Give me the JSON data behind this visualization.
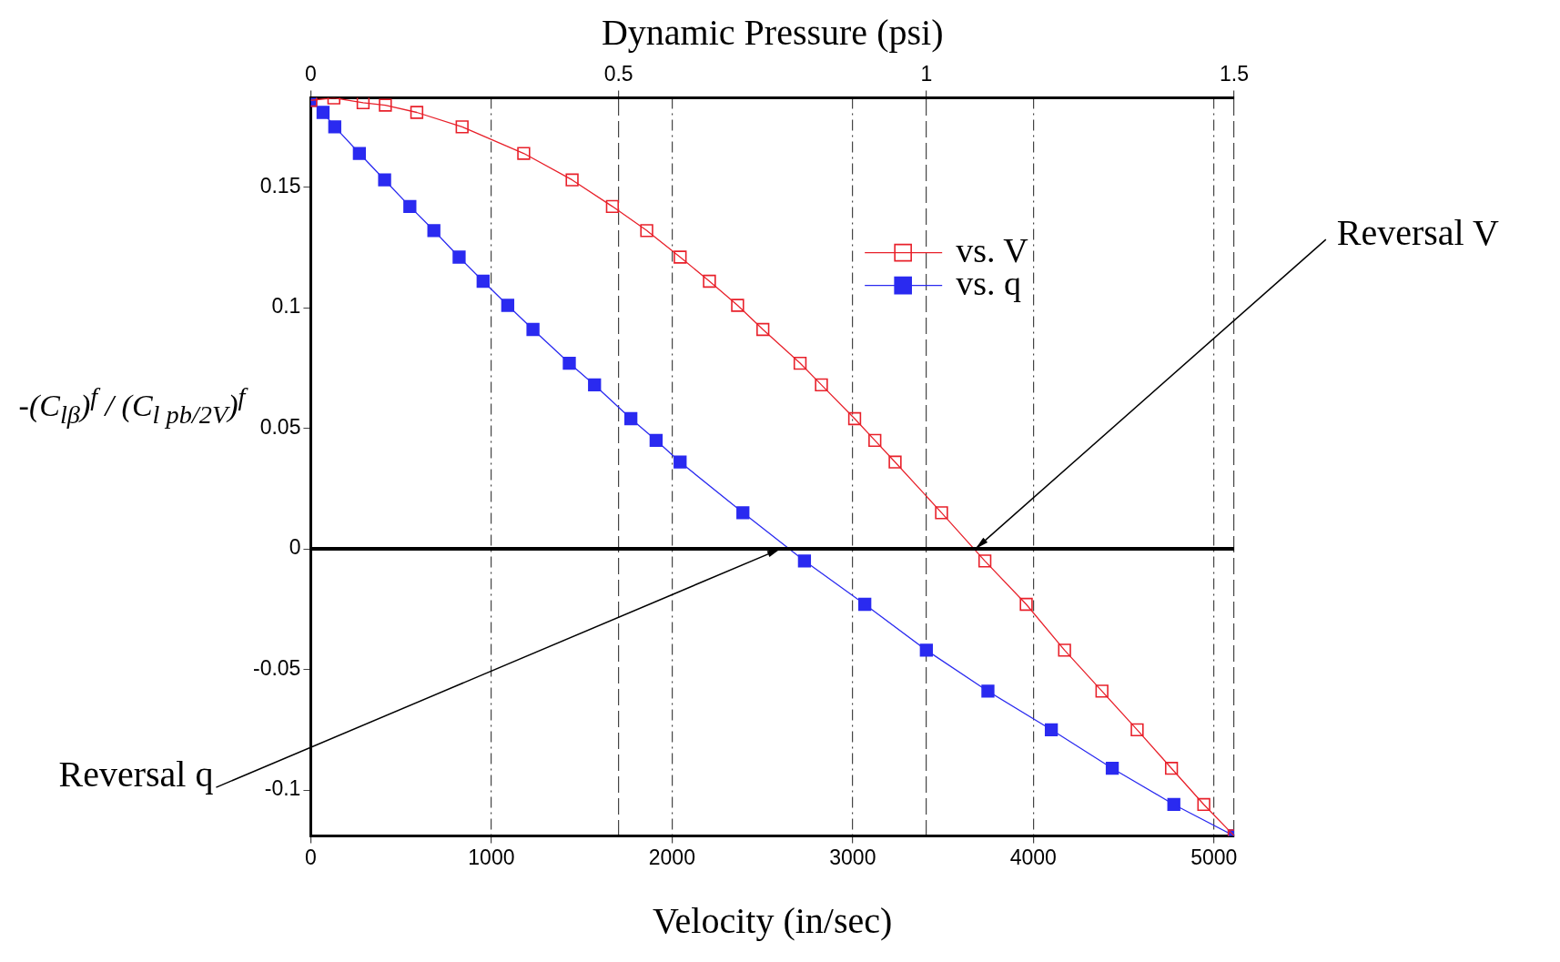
{
  "chart_data": {
    "type": "line",
    "xlabel": "Velocity (in/sec)",
    "x2label": "Dynamic Pressure (psi)",
    "ylabel": "-(C$_{lβ}$)$^{f}$ / (C$_{l pb/2V}$)$^{f}$",
    "xlim": [
      0,
      5112
    ],
    "xticks": [
      0,
      1000,
      2000,
      3000,
      4000,
      5000
    ],
    "x2lim": [
      0,
      1.5
    ],
    "x2ticks": [
      0,
      0.5,
      1,
      1.5
    ],
    "ylim": [
      -0.119,
      0.187
    ],
    "yticks": [
      -0.1,
      -0.05,
      0,
      0.05,
      0.1,
      0.15
    ],
    "grid": "x",
    "legend": "top right",
    "marker": "square",
    "line_style": "solid",
    "series": [
      {
        "name": "vs. V",
        "color": "#e8202a",
        "x": [
          0,
          128,
          290,
          413,
          587,
          838,
          1179,
          1447,
          1670,
          1860,
          2045,
          2207,
          2363,
          2503,
          2709,
          2827,
          3011,
          3123,
          3235,
          3492,
          3732,
          3961,
          4173,
          4380,
          4575,
          4765,
          4944,
          5112
        ],
        "values": [
          0.186,
          0.187,
          0.185,
          0.184,
          0.181,
          0.175,
          0.164,
          0.153,
          0.142,
          0.132,
          0.121,
          0.111,
          0.101,
          0.091,
          0.077,
          0.068,
          0.054,
          0.045,
          0.036,
          0.015,
          -0.005,
          -0.023,
          -0.042,
          -0.059,
          -0.075,
          -0.091,
          -0.106,
          -0.119
        ]
      },
      {
        "name": "vs. q",
        "color": "#2a2af0",
        "axis": "x2",
        "x": [
          0,
          0.02,
          0.039,
          0.079,
          0.12,
          0.161,
          0.2,
          0.241,
          0.28,
          0.32,
          0.361,
          0.42,
          0.461,
          0.52,
          0.561,
          0.6,
          0.702,
          0.802,
          0.9,
          1.0,
          1.1,
          1.203,
          1.302,
          1.402,
          1.5
        ],
        "values": [
          0.186,
          0.181,
          0.175,
          0.164,
          0.153,
          0.142,
          0.132,
          0.121,
          0.111,
          0.101,
          0.091,
          0.077,
          0.068,
          0.054,
          0.045,
          0.036,
          0.015,
          -0.005,
          -0.023,
          -0.042,
          -0.059,
          -0.075,
          -0.091,
          -0.106,
          -0.119
        ]
      }
    ],
    "ref_lines": [
      {
        "axis": "y",
        "value": 0,
        "color": "#000000"
      }
    ],
    "annotations": [
      {
        "text": "Reversal V",
        "x": 3680,
        "y": 0
      },
      {
        "text": "Reversal q",
        "x": 2600,
        "y": 0
      }
    ]
  }
}
